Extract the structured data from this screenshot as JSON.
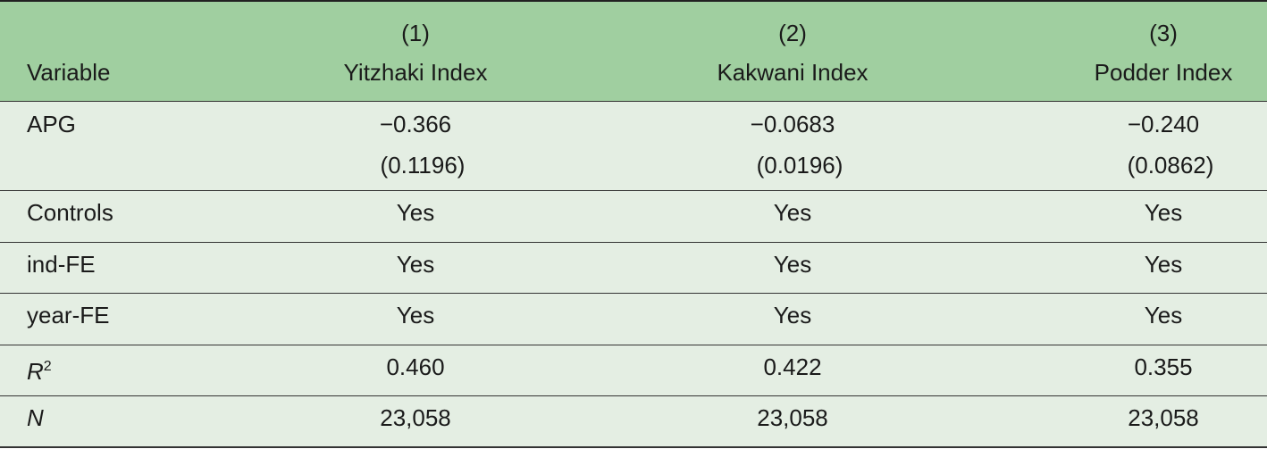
{
  "header": {
    "variable": "Variable",
    "columns": [
      {
        "number": "(1)",
        "name": "Yitzhaki Index"
      },
      {
        "number": "(2)",
        "name": "Kakwani Index"
      },
      {
        "number": "(3)",
        "name": "Podder Index"
      }
    ]
  },
  "rows": [
    {
      "label": "APG",
      "values": [
        "−0.366",
        "−0.0683",
        "−0.240"
      ],
      "errors": [
        "(0.1196)",
        "(0.0196)",
        "(0.0862)"
      ]
    },
    {
      "label": "Controls",
      "values": [
        "Yes",
        "Yes",
        "Yes"
      ]
    },
    {
      "label": "ind-FE",
      "values": [
        "Yes",
        "Yes",
        "Yes"
      ]
    },
    {
      "label": "year-FE",
      "values": [
        "Yes",
        "Yes",
        "Yes"
      ]
    },
    {
      "label": "R",
      "label_sup": "2",
      "italic": true,
      "values": [
        "0.460",
        "0.422",
        "0.355"
      ]
    },
    {
      "label": "N",
      "italic": true,
      "values": [
        "23,058",
        "23,058",
        "23,058"
      ]
    }
  ]
}
